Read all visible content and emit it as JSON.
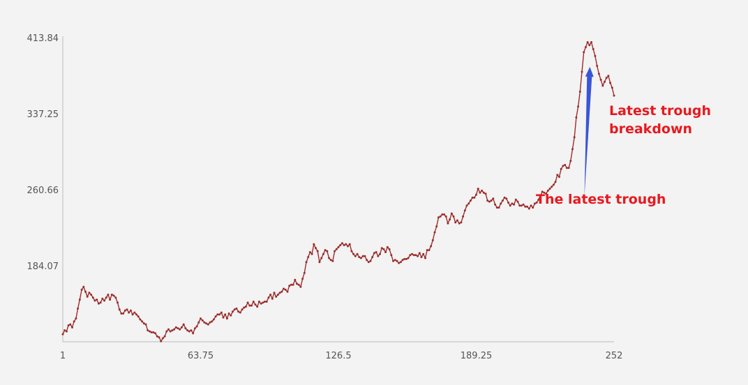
{
  "chart_data": {
    "type": "line",
    "title": "",
    "xlabel": "",
    "ylabel": "",
    "xlim": [
      1,
      252
    ],
    "ylim": [
      107.48,
      413.84
    ],
    "x_ticks": [
      "1",
      "63.75",
      "126.5",
      "189.25",
      "252"
    ],
    "y_ticks": [
      "413.84",
      "337.25",
      "260.66",
      "184.07"
    ],
    "grid": false,
    "colors": {
      "line": "#9b2c2c",
      "arrow": "#3a55d6",
      "annotation": "#e8181f",
      "axis": "#bbbbbb"
    },
    "series": [
      {
        "values": [
          115,
          119,
          118,
          124,
          125,
          122,
          128,
          131,
          141,
          150,
          160,
          163,
          158,
          153,
          157,
          155,
          152,
          149,
          150,
          146,
          147,
          151,
          149,
          152,
          155,
          150,
          155,
          154,
          152,
          147,
          140,
          136,
          136,
          139,
          140,
          137,
          139,
          135,
          137,
          135,
          133,
          130,
          128,
          126,
          125,
          119,
          118,
          117,
          117,
          116,
          113,
          112,
          108,
          111,
          113,
          118,
          120,
          118,
          119,
          120,
          122,
          121,
          120,
          122,
          125,
          121,
          119,
          118,
          119,
          116,
          121,
          123,
          127,
          131,
          129,
          127,
          126,
          125,
          127,
          128,
          130,
          133,
          135,
          135,
          137,
          132,
          135,
          131,
          136,
          134,
          138,
          140,
          141,
          138,
          137,
          140,
          142,
          143,
          147,
          144,
          144,
          148,
          145,
          143,
          148,
          146,
          147,
          148,
          148,
          152,
          155,
          151,
          157,
          153,
          155,
          157,
          158,
          161,
          160,
          158,
          164,
          165,
          165,
          170,
          166,
          165,
          163,
          171,
          177,
          188,
          193,
          198,
          196,
          206,
          202,
          199,
          188,
          192,
          196,
          200,
          199,
          192,
          190,
          189,
          199,
          201,
          203,
          205,
          207,
          205,
          206,
          204,
          206,
          199,
          196,
          194,
          196,
          193,
          192,
          194,
          194,
          190,
          188,
          189,
          193,
          197,
          198,
          194,
          196,
          202,
          201,
          198,
          203,
          201,
          195,
          189,
          190,
          189,
          187,
          188,
          190,
          191,
          191,
          192,
          195,
          196,
          195,
          195,
          194,
          197,
          193,
          196,
          192,
          200,
          200,
          204,
          210,
          218,
          224,
          233,
          234,
          236,
          236,
          234,
          227,
          231,
          237,
          234,
          228,
          230,
          227,
          228,
          234,
          240,
          245,
          247,
          250,
          253,
          253,
          256,
          262,
          258,
          260,
          258,
          257,
          250,
          249,
          250,
          252,
          246,
          243,
          243,
          247,
          250,
          253,
          252,
          248,
          245,
          247,
          246,
          251,
          249,
          245,
          245,
          246,
          244,
          244,
          242,
          245,
          243,
          247,
          248,
          251,
          255,
          259,
          258,
          257,
          260,
          262,
          264,
          266,
          269,
          276,
          274,
          282,
          285,
          286,
          283,
          283,
          290,
          302,
          314,
          334,
          345,
          360,
          380,
          400,
          405,
          410,
          407,
          410,
          403,
          396,
          386,
          378,
          372,
          366,
          370,
          374,
          376,
          369,
          364,
          356
        ]
      }
    ],
    "annotations": [
      {
        "text": "The latest trough",
        "arrow_from_x": 238.5,
        "arrow_from_y": 254,
        "arrow_to_x": 241,
        "arrow_to_y": 385
      },
      {
        "text": "Latest trough",
        "line2": "breakdown"
      }
    ]
  }
}
